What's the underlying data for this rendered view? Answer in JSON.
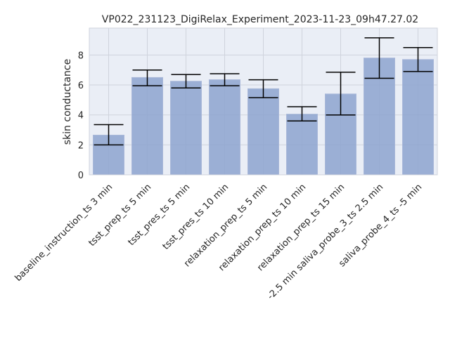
{
  "chart_data": {
    "type": "bar",
    "title": "VP022_231123_DigiRelax_Experiment_2023-11-23_09h47.27.02",
    "xlabel": "",
    "ylabel": "skin conductance",
    "ylim": [
      0,
      9.8
    ],
    "yticks": [
      0,
      2,
      4,
      6,
      8
    ],
    "grid": true,
    "categories": [
      "baseline_instruction_ts 3 min",
      "tsst_prep_ts 5 min",
      "tsst_pres_ts 5 min",
      "tsst_pres_ts 10 min",
      "relaxation_prep_ts 5 min",
      "relaxation_prep_ts 10 min",
      "relaxation_prep_ts 15 min",
      "-2.5 min saliva_probe_3_ts 2.5 min",
      "saliva_probe_4_ts -5 min"
    ],
    "values": [
      2.65,
      6.5,
      6.25,
      6.35,
      5.75,
      4.05,
      5.4,
      7.8,
      7.7
    ],
    "error_low": [
      2.0,
      5.95,
      5.8,
      5.95,
      5.15,
      3.6,
      4.0,
      6.45,
      6.9
    ],
    "error_high": [
      3.35,
      7.0,
      6.7,
      6.75,
      6.35,
      4.55,
      6.85,
      9.15,
      8.5
    ],
    "colors": {
      "bar": "#8da3cf",
      "bar_edge": "#a9b8d9",
      "plot_bg": "#eaeef6",
      "grid": "#ffffff",
      "error": "#000000"
    }
  }
}
